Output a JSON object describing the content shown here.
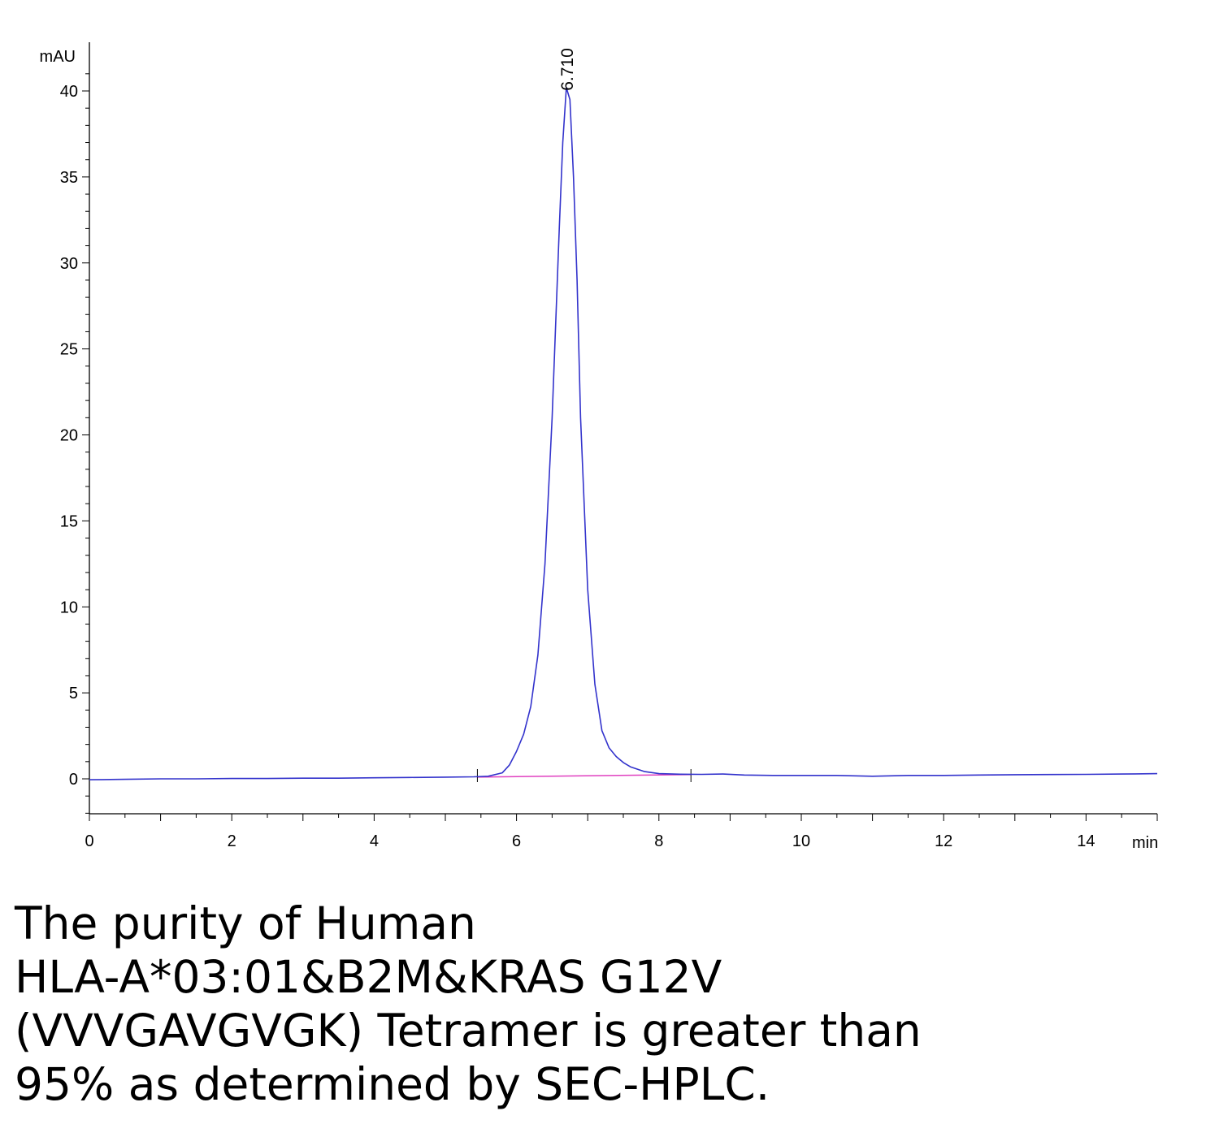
{
  "chart_data": {
    "type": "line",
    "xlabel": "min",
    "ylabel": "mAU",
    "xlim": [
      0,
      15
    ],
    "ylim": [
      -2,
      42
    ],
    "x_ticks": [
      0,
      2,
      4,
      6,
      8,
      10,
      12,
      14
    ],
    "y_ticks": [
      0,
      5,
      10,
      15,
      20,
      25,
      30,
      35,
      40
    ],
    "peak_annotations": [
      {
        "x": 6.71,
        "y": 40.2,
        "label": "6.710"
      }
    ],
    "integration_baseline": {
      "x": [
        5.45,
        8.45
      ],
      "y": [
        0.1,
        0.25
      ],
      "color": "#e040c0"
    },
    "integration_marks": [
      5.45,
      8.45
    ],
    "series_color": "#3333cc",
    "series": [
      {
        "x": [
          0,
          0.5,
          1,
          1.5,
          2,
          2.5,
          3,
          3.5,
          4,
          4.5,
          5,
          5.4,
          5.6,
          5.8,
          5.9,
          6.0,
          6.1,
          6.2,
          6.3,
          6.4,
          6.5,
          6.6,
          6.65,
          6.7,
          6.75,
          6.8,
          6.85,
          6.9,
          7.0,
          7.1,
          7.2,
          7.3,
          7.4,
          7.5,
          7.6,
          7.8,
          8.0,
          8.3,
          8.6,
          8.9,
          9.2,
          9.6,
          10,
          10.5,
          11,
          11.5,
          12,
          12.5,
          13,
          13.5,
          14,
          14.5,
          15
        ],
        "y": [
          -0.05,
          -0.03,
          0,
          0,
          0.02,
          0.02,
          0.04,
          0.04,
          0.06,
          0.08,
          0.1,
          0.12,
          0.15,
          0.35,
          0.8,
          1.6,
          2.6,
          4.2,
          7.2,
          12.5,
          21,
          32,
          37,
          40.2,
          39.5,
          35,
          29,
          21,
          11,
          5.5,
          2.8,
          1.8,
          1.3,
          0.95,
          0.7,
          0.42,
          0.3,
          0.27,
          0.26,
          0.28,
          0.22,
          0.2,
          0.2,
          0.2,
          0.15,
          0.2,
          0.2,
          0.22,
          0.24,
          0.25,
          0.26,
          0.28,
          0.3
        ]
      }
    ]
  },
  "caption": {
    "lines": [
      "The purity of Human",
      "HLA-A*03:01&B2M&KRAS G12V",
      "(VVVGAVGVGK) Tetramer is greater than",
      "95% as determined by SEC-HPLC."
    ]
  }
}
